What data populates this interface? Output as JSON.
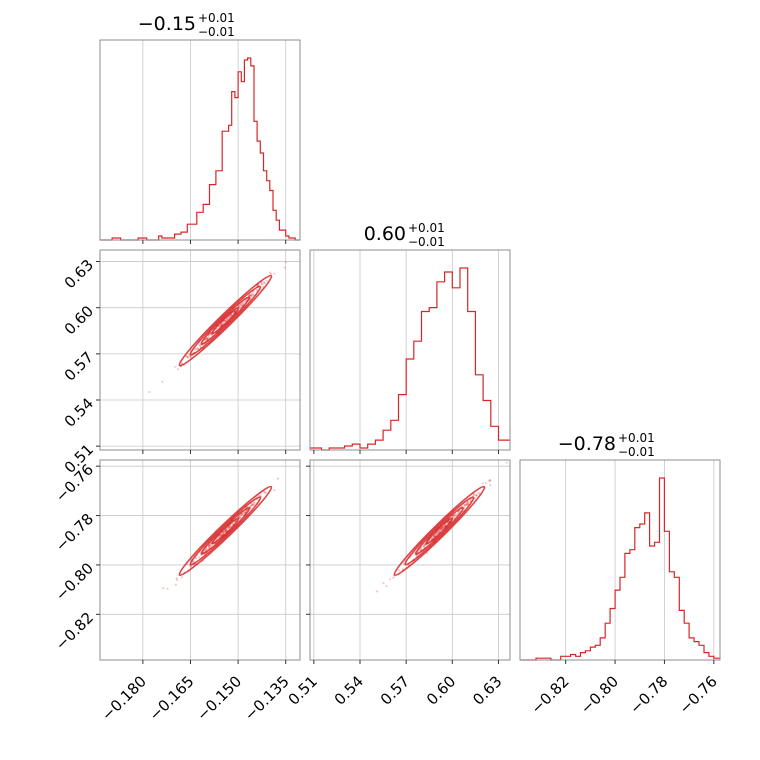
{
  "colors": {
    "accent": "#d62728",
    "grid": "#c8c8c8",
    "frame": "#8c8c8c"
  },
  "chart_data": {
    "type": "corner",
    "parameters": [
      {
        "title": {
          "value": "−0.15",
          "upper": "+0.01",
          "lower": "−0.01"
        },
        "range": [
          -0.1935,
          -0.1305
        ],
        "ticks": [
          -0.18,
          -0.165,
          -0.15,
          -0.135
        ],
        "tick_labels": [
          "−0.180",
          "−0.165",
          "−0.150",
          "−0.135"
        ],
        "samples_range": [
          -0.187,
          -0.132
        ],
        "histogram": {
          "bins": [
            -0.1935,
            -0.1897,
            -0.187,
            -0.185,
            -0.1815,
            -0.1788,
            -0.175,
            -0.174,
            -0.172,
            -0.17,
            -0.168,
            -0.166,
            -0.163,
            -0.161,
            -0.159,
            -0.157,
            -0.155,
            -0.153,
            -0.152,
            -0.151,
            -0.15,
            -0.149,
            -0.148,
            -0.147,
            -0.146,
            -0.145,
            -0.144,
            -0.143,
            -0.142,
            -0.141,
            -0.14,
            -0.139,
            -0.138,
            -0.137,
            -0.135,
            -0.134,
            -0.132,
            -0.1305
          ],
          "counts": [
            0,
            1,
            0,
            0,
            1,
            0,
            2,
            1,
            1,
            3,
            4,
            8,
            14,
            18,
            28,
            35,
            55,
            58,
            75,
            72,
            85,
            80,
            91,
            92,
            88,
            60,
            50,
            44,
            35,
            30,
            25,
            15,
            10,
            5,
            2,
            1,
            0
          ]
        }
      },
      {
        "title": {
          "value": "0.60",
          "upper": "+0.01",
          "lower": "−0.01"
        },
        "range": [
          0.5075,
          0.6375
        ],
        "ticks": [
          0.51,
          0.54,
          0.57,
          0.6,
          0.63
        ],
        "tick_labels": [
          "0.51",
          "0.54",
          "0.57",
          "0.60",
          "0.63"
        ],
        "samples_range": [
          0.525,
          0.636
        ],
        "histogram": {
          "bins": [
            0.5075,
            0.515,
            0.52,
            0.525,
            0.53,
            0.535,
            0.54,
            0.545,
            0.55,
            0.555,
            0.56,
            0.565,
            0.57,
            0.575,
            0.58,
            0.585,
            0.59,
            0.595,
            0.6,
            0.605,
            0.61,
            0.615,
            0.62,
            0.625,
            0.63,
            0.6375
          ],
          "counts": [
            1,
            0,
            1,
            1,
            2,
            3,
            1,
            3,
            5,
            10,
            15,
            28,
            46,
            55,
            70,
            72,
            85,
            90,
            82,
            92,
            70,
            38,
            25,
            12,
            5
          ]
        }
      },
      {
        "title": {
          "value": "−0.78",
          "upper": "+0.01",
          "lower": "−0.01"
        },
        "range": [
          -0.8385,
          -0.7575
        ],
        "ticks": [
          -0.82,
          -0.8,
          -0.78,
          -0.76
        ],
        "tick_labels": [
          "−0.82",
          "−0.80",
          "−0.78",
          "−0.76"
        ],
        "samples_range": [
          -0.827,
          -0.759
        ],
        "histogram": {
          "bins": [
            -0.8385,
            -0.832,
            -0.826,
            -0.822,
            -0.818,
            -0.816,
            -0.814,
            -0.812,
            -0.81,
            -0.808,
            -0.806,
            -0.804,
            -0.802,
            -0.8,
            -0.798,
            -0.796,
            -0.794,
            -0.792,
            -0.79,
            -0.788,
            -0.786,
            -0.784,
            -0.782,
            -0.78,
            -0.778,
            -0.776,
            -0.774,
            -0.772,
            -0.77,
            -0.768,
            -0.766,
            -0.764,
            -0.762,
            -0.76,
            -0.7575
          ],
          "counts": [
            0,
            1,
            0,
            2,
            3,
            2,
            4,
            5,
            7,
            8,
            12,
            20,
            28,
            38,
            45,
            58,
            60,
            72,
            74,
            80,
            62,
            64,
            99,
            70,
            48,
            45,
            27,
            20,
            12,
            10,
            8,
            4,
            2,
            1
          ]
        }
      }
    ]
  }
}
